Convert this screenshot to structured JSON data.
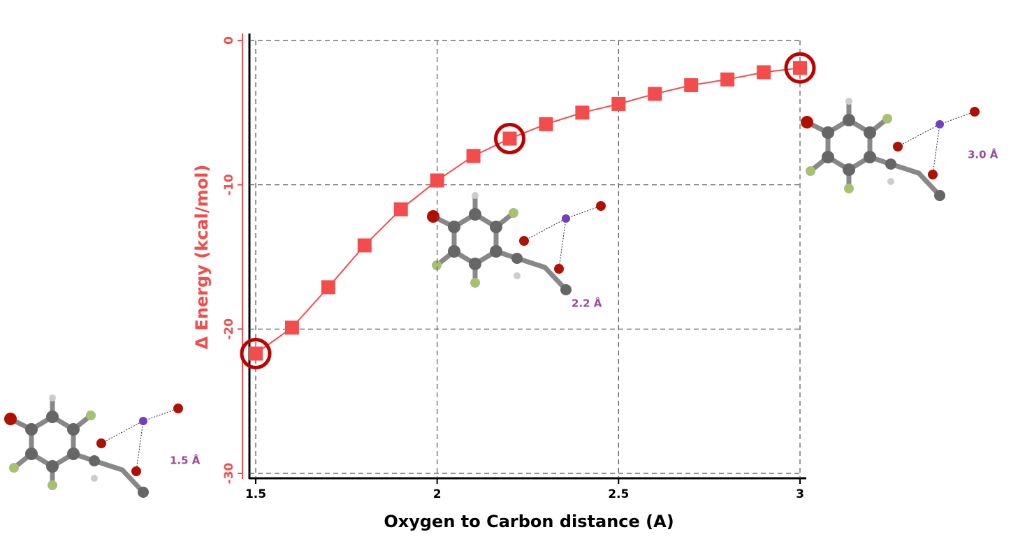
{
  "chart_data": {
    "type": "line",
    "x": [
      1.5,
      1.6,
      1.7,
      1.8,
      1.9,
      2.0,
      2.1,
      2.2,
      2.3,
      2.4,
      2.5,
      2.6,
      2.7,
      2.8,
      2.9,
      3.0
    ],
    "series": [
      {
        "name": "Δ Energy",
        "color": "#f44b4b",
        "values": [
          -21.7,
          -19.9,
          -17.1,
          -14.2,
          -11.7,
          -9.7,
          -8.0,
          -6.8,
          -5.8,
          -5.0,
          -4.4,
          -3.7,
          -3.1,
          -2.7,
          -2.2,
          -1.9
        ]
      }
    ],
    "highlighted": [
      0,
      7,
      15
    ],
    "highlight_color": "#c00000",
    "xlabel": "Oxygen to Carbon distance (A)",
    "ylabel": "Δ Energy (kcal/mol)",
    "xlim": [
      1.5,
      3.0
    ],
    "xticks": [
      1.5,
      2,
      2.5,
      3
    ],
    "ylim": [
      -30,
      0
    ],
    "yticks": [
      0,
      -10,
      -20,
      -30
    ],
    "grid": true,
    "annotations": [
      "1.5 Å",
      "2.2 Å",
      "3.0 Å"
    ]
  }
}
